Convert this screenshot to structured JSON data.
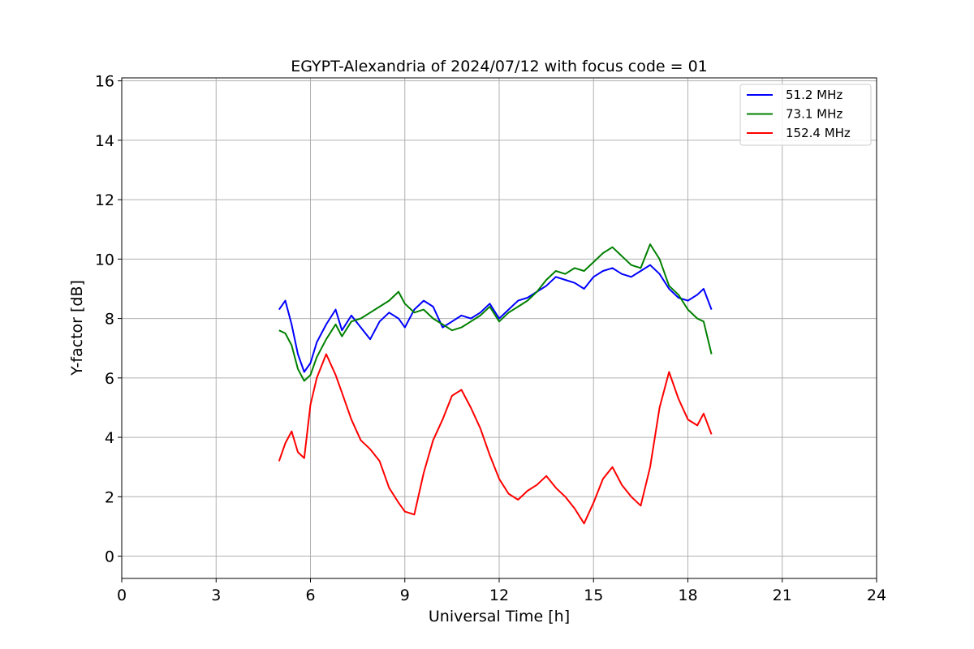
{
  "chart_data": {
    "type": "line",
    "title": "EGYPT-Alexandria of 2024/07/12 with focus code = 01",
    "xlabel": "Universal Time [h]",
    "ylabel": "Y-factor [dB]",
    "xlim": [
      0,
      24
    ],
    "ylim": [
      -0.75,
      16.1
    ],
    "xticks": [
      0,
      3,
      6,
      9,
      12,
      15,
      18,
      21,
      24
    ],
    "yticks": [
      0,
      2,
      4,
      6,
      8,
      10,
      12,
      14,
      16
    ],
    "grid": true,
    "legend_position": "top-right",
    "series": [
      {
        "name": " 51.2 MHz",
        "color": "#0000ff",
        "x": [
          5.0,
          5.2,
          5.4,
          5.6,
          5.8,
          6.0,
          6.2,
          6.5,
          6.8,
          7.0,
          7.3,
          7.6,
          7.9,
          8.2,
          8.5,
          8.8,
          9.0,
          9.3,
          9.6,
          9.9,
          10.2,
          10.5,
          10.8,
          11.1,
          11.4,
          11.7,
          12.0,
          12.3,
          12.6,
          12.9,
          13.2,
          13.5,
          13.8,
          14.1,
          14.4,
          14.7,
          15.0,
          15.3,
          15.6,
          15.9,
          16.2,
          16.5,
          16.8,
          17.1,
          17.4,
          17.7,
          18.0,
          18.3,
          18.5,
          18.75
        ],
        "y": [
          8.3,
          8.6,
          7.8,
          6.8,
          6.2,
          6.5,
          7.2,
          7.8,
          8.3,
          7.6,
          8.1,
          7.7,
          7.3,
          7.9,
          8.2,
          8.0,
          7.7,
          8.3,
          8.6,
          8.4,
          7.7,
          7.9,
          8.1,
          8.0,
          8.2,
          8.5,
          8.0,
          8.3,
          8.6,
          8.7,
          8.9,
          9.1,
          9.4,
          9.3,
          9.2,
          9.0,
          9.4,
          9.6,
          9.7,
          9.5,
          9.4,
          9.6,
          9.8,
          9.5,
          9.0,
          8.7,
          8.6,
          8.8,
          9.0,
          8.3
        ]
      },
      {
        "name": " 73.1 MHz",
        "color": "#008000",
        "x": [
          5.0,
          5.2,
          5.4,
          5.6,
          5.8,
          6.0,
          6.2,
          6.5,
          6.8,
          7.0,
          7.3,
          7.6,
          7.9,
          8.2,
          8.5,
          8.8,
          9.0,
          9.3,
          9.6,
          9.9,
          10.2,
          10.5,
          10.8,
          11.1,
          11.4,
          11.7,
          12.0,
          12.3,
          12.6,
          12.9,
          13.2,
          13.5,
          13.8,
          14.1,
          14.4,
          14.7,
          15.0,
          15.3,
          15.6,
          15.9,
          16.2,
          16.5,
          16.8,
          17.1,
          17.4,
          17.7,
          18.0,
          18.3,
          18.5,
          18.75
        ],
        "y": [
          7.6,
          7.5,
          7.1,
          6.3,
          5.9,
          6.1,
          6.7,
          7.3,
          7.8,
          7.4,
          7.9,
          8.0,
          8.2,
          8.4,
          8.6,
          8.9,
          8.5,
          8.2,
          8.3,
          8.0,
          7.8,
          7.6,
          7.7,
          7.9,
          8.1,
          8.4,
          7.9,
          8.2,
          8.4,
          8.6,
          8.9,
          9.3,
          9.6,
          9.5,
          9.7,
          9.6,
          9.9,
          10.2,
          10.4,
          10.1,
          9.8,
          9.7,
          10.5,
          10.0,
          9.1,
          8.8,
          8.3,
          8.0,
          7.9,
          6.8
        ]
      },
      {
        "name": " 152.4 MHz",
        "color": "#ff0000",
        "x": [
          5.0,
          5.2,
          5.4,
          5.6,
          5.8,
          6.0,
          6.2,
          6.5,
          6.8,
          7.0,
          7.3,
          7.6,
          7.9,
          8.2,
          8.5,
          8.8,
          9.0,
          9.3,
          9.6,
          9.9,
          10.2,
          10.5,
          10.8,
          11.1,
          11.4,
          11.7,
          12.0,
          12.3,
          12.6,
          12.9,
          13.2,
          13.5,
          13.8,
          14.1,
          14.4,
          14.7,
          15.0,
          15.3,
          15.6,
          15.9,
          16.2,
          16.5,
          16.8,
          17.1,
          17.4,
          17.7,
          18.0,
          18.3,
          18.5,
          18.75
        ],
        "y": [
          3.2,
          3.8,
          4.2,
          3.5,
          3.3,
          5.1,
          6.0,
          6.8,
          6.1,
          5.5,
          4.6,
          3.9,
          3.6,
          3.2,
          2.3,
          1.8,
          1.5,
          1.4,
          2.8,
          3.9,
          4.6,
          5.4,
          5.6,
          5.0,
          4.3,
          3.4,
          2.6,
          2.1,
          1.9,
          2.2,
          2.4,
          2.7,
          2.3,
          2.0,
          1.6,
          1.1,
          1.8,
          2.6,
          3.0,
          2.4,
          2.0,
          1.7,
          3.0,
          5.0,
          6.2,
          5.3,
          4.6,
          4.4,
          4.8,
          4.1
        ]
      }
    ],
    "annotations": []
  }
}
